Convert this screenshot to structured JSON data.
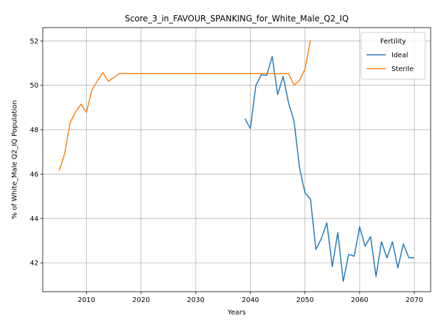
{
  "chart_data": {
    "type": "line",
    "title": "Score_3_in_FAVOUR_SPANKING_for_White_Male_Q2_IQ",
    "xlabel": "Years",
    "ylabel": "% of White_Male Q2_IQ Population",
    "xlim": [
      2002,
      2073
    ],
    "ylim": [
      40.7,
      52.6
    ],
    "xticks": [
      2010,
      2020,
      2030,
      2040,
      2050,
      2060,
      2070
    ],
    "xtick_labels": [
      "2010",
      "2020",
      "2030",
      "2040",
      "2050",
      "2060",
      "2070"
    ],
    "yticks": [
      42,
      44,
      46,
      48,
      50,
      52
    ],
    "ytick_labels": [
      "42",
      "44",
      "46",
      "48",
      "50",
      "52"
    ],
    "grid": true,
    "legend": {
      "title": "Fertility",
      "placement": "upper right"
    },
    "series": [
      {
        "name": "Ideal",
        "color": "#1f77b4",
        "points": [
          [
            2039,
            48.5
          ],
          [
            2040,
            48.05
          ],
          [
            2041,
            49.98
          ],
          [
            2042,
            50.47
          ],
          [
            2043,
            50.45
          ],
          [
            2044,
            51.3
          ],
          [
            2045,
            49.58
          ],
          [
            2046,
            50.4
          ],
          [
            2047,
            49.2
          ],
          [
            2048,
            48.38
          ],
          [
            2049,
            46.28
          ],
          [
            2050,
            45.15
          ],
          [
            2051,
            44.87
          ],
          [
            2052,
            42.6
          ],
          [
            2053,
            43.1
          ],
          [
            2054,
            43.8
          ],
          [
            2055,
            41.83
          ],
          [
            2056,
            43.37
          ],
          [
            2057,
            41.17
          ],
          [
            2058,
            42.38
          ],
          [
            2059,
            42.3
          ],
          [
            2060,
            43.62
          ],
          [
            2061,
            42.75
          ],
          [
            2062,
            43.18
          ],
          [
            2063,
            41.38
          ],
          [
            2064,
            42.95
          ],
          [
            2065,
            42.22
          ],
          [
            2066,
            42.95
          ],
          [
            2067,
            41.77
          ],
          [
            2068,
            42.85
          ],
          [
            2069,
            42.23
          ],
          [
            2070,
            42.23
          ]
        ]
      },
      {
        "name": "Sterile",
        "color": "#ff7f0e",
        "points": [
          [
            2005,
            46.15
          ],
          [
            2006,
            46.9
          ],
          [
            2007,
            48.3
          ],
          [
            2008,
            48.8
          ],
          [
            2009,
            49.15
          ],
          [
            2010,
            48.78
          ],
          [
            2011,
            49.8
          ],
          [
            2012,
            50.2
          ],
          [
            2013,
            50.57
          ],
          [
            2014,
            50.18
          ],
          [
            2015,
            50.35
          ],
          [
            2016,
            50.53
          ],
          [
            2017,
            50.53
          ],
          [
            2018,
            50.53
          ],
          [
            2019,
            50.53
          ],
          [
            2020,
            50.53
          ],
          [
            2021,
            50.53
          ],
          [
            2022,
            50.53
          ],
          [
            2023,
            50.53
          ],
          [
            2024,
            50.53
          ],
          [
            2025,
            50.53
          ],
          [
            2026,
            50.53
          ],
          [
            2027,
            50.53
          ],
          [
            2028,
            50.53
          ],
          [
            2029,
            50.53
          ],
          [
            2030,
            50.53
          ],
          [
            2031,
            50.53
          ],
          [
            2032,
            50.53
          ],
          [
            2033,
            50.53
          ],
          [
            2034,
            50.53
          ],
          [
            2035,
            50.53
          ],
          [
            2036,
            50.53
          ],
          [
            2037,
            50.53
          ],
          [
            2038,
            50.53
          ],
          [
            2039,
            50.53
          ],
          [
            2040,
            50.53
          ],
          [
            2041,
            50.53
          ],
          [
            2042,
            50.53
          ],
          [
            2043,
            50.53
          ],
          [
            2044,
            50.53
          ],
          [
            2045,
            50.53
          ],
          [
            2046,
            50.53
          ],
          [
            2047,
            50.53
          ],
          [
            2048,
            50.0
          ],
          [
            2049,
            50.22
          ],
          [
            2050,
            50.73
          ],
          [
            2051,
            52.03
          ]
        ]
      }
    ]
  }
}
